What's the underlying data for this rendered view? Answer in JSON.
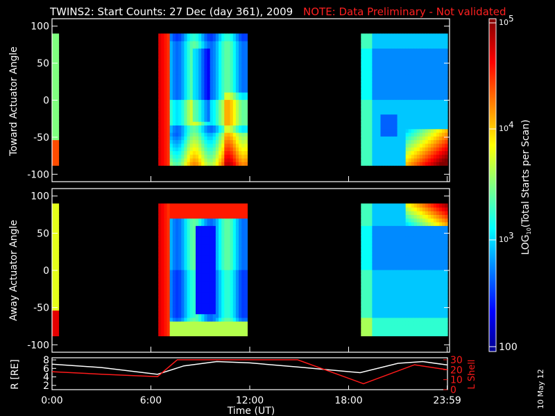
{
  "header": {
    "title": "TWINS2: Start Counts: 27 Dec (day 361), 2009",
    "note": "NOTE: Data Preliminary - Not validated"
  },
  "colors": {
    "background": "#000000",
    "foreground": "#ffffff",
    "note": "#ff2020",
    "lshell": "#ff1a1a"
  },
  "colorbar": {
    "label": "LOG10(Total Starts per Scan)",
    "ticks": [
      "10^5",
      "10^4",
      "10^3",
      "100"
    ],
    "range": [
      100,
      100000
    ],
    "scale": "log"
  },
  "panel_top": {
    "ylabel": "Toward Actuator Angle",
    "yticks": [
      "100",
      "50",
      "0",
      "-50",
      "-100"
    ],
    "ylim": [
      -110,
      110
    ]
  },
  "panel_mid": {
    "ylabel": "Away Actuator Angle",
    "yticks": [
      "100",
      "50",
      "0",
      "-50",
      "-100"
    ],
    "ylim": [
      -110,
      110
    ]
  },
  "panel_bottom": {
    "ylabel_left": "R [RE]",
    "ylabel_right": "L Shell",
    "yticks_left": [
      "8",
      "6",
      "4",
      "2"
    ],
    "yticks_right": [
      "30",
      "20",
      "10",
      "0"
    ]
  },
  "xaxis": {
    "label": "Time (UT)",
    "ticks": [
      "0:00",
      "6:00",
      "12:00",
      "18:00",
      "23:59"
    ]
  },
  "footer": {
    "date_stamp": "10 May 12"
  },
  "chart_data": {
    "type": "heatmap",
    "title": "TWINS2: Start Counts: 27 Dec (day 361), 2009",
    "xlabel": "Time (UT)",
    "x_range_hours": [
      0,
      24
    ],
    "data_intervals_hours": [
      [
        0.0,
        0.4
      ],
      [
        6.45,
        11.85
      ],
      [
        18.75,
        24.0
      ]
    ],
    "panels": [
      {
        "name": "Toward Actuator Angle",
        "ylim": [
          -110,
          110
        ],
        "y_data_range": [
          -88,
          90
        ]
      },
      {
        "name": "Away Actuator Angle",
        "ylim": [
          -110,
          110
        ],
        "y_data_range": [
          -88,
          90
        ]
      }
    ],
    "colorbar": {
      "label": "LOG10(Total Starts per Scan)",
      "min": 100,
      "max": 100000,
      "scale": "log"
    },
    "orbit": {
      "series": [
        {
          "name": "R [RE]",
          "color": "#ffffff",
          "x": [
            0,
            3,
            6.4,
            8,
            10,
            12,
            15,
            18.7,
            21,
            22.5,
            23.99
          ],
          "y": [
            7.0,
            6.2,
            4.6,
            6.6,
            7.6,
            7.3,
            6.3,
            5.0,
            7.2,
            7.6,
            6.8
          ]
        },
        {
          "name": "L Shell",
          "color": "#ff1a1a",
          "x": [
            0,
            3,
            6.4,
            7.6,
            14.9,
            18.9,
            22.0,
            23.99
          ],
          "y": [
            18,
            15.5,
            13,
            30,
            30,
            6,
            25,
            20
          ]
        }
      ]
    }
  }
}
